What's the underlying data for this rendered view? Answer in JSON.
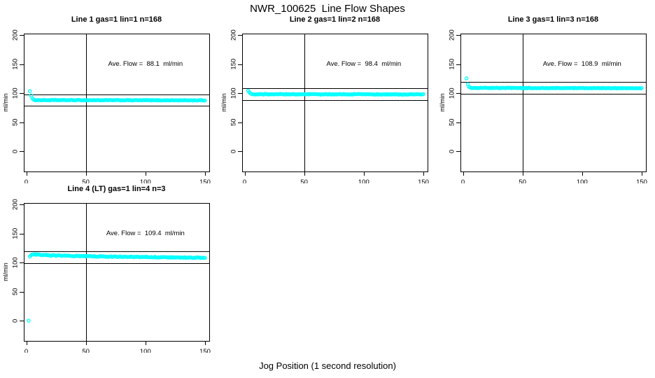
{
  "figure": {
    "title": "NWR_100625  Line Flow Shapes",
    "xlabel": "Jog Position (1 second resolution)",
    "background": "#FFFFFF",
    "colors": {
      "points": "#00FFFF",
      "axis": "#000000"
    }
  },
  "chart_data": [
    {
      "type": "scatter",
      "title": "Line 1 gas=1 lin=1 n=168",
      "n": 168,
      "ave_flow": 88.1,
      "ave_flow_label": "Ave. Flow =  88.1  ml/min",
      "ylabel": "ml/min",
      "x_ticks": [
        0,
        50,
        100,
        150
      ],
      "y_ticks": [
        0,
        50,
        100,
        150,
        200
      ],
      "xlim": [
        -2,
        153
      ],
      "ylim": [
        -34,
        202
      ],
      "vline_x": 50,
      "hlines": [
        98.1,
        78.1
      ],
      "annotation_xy": [
        100,
        150
      ],
      "marker": "open-circle",
      "x_step": 1,
      "noise": 0.5,
      "series_profile": [
        [
          3,
          104
        ],
        [
          4,
          96
        ],
        [
          5,
          91
        ],
        [
          6,
          89
        ],
        [
          8,
          88.2
        ],
        [
          150,
          87.8
        ]
      ],
      "grid": false
    },
    {
      "type": "scatter",
      "title": "Line 2 gas=1 lin=2 n=168",
      "n": 168,
      "ave_flow": 98.4,
      "ave_flow_label": "Ave. Flow =  98.4  ml/min",
      "ylabel": "ml/min",
      "x_ticks": [
        0,
        50,
        100,
        150
      ],
      "y_ticks": [
        0,
        50,
        100,
        150,
        200
      ],
      "xlim": [
        -2,
        153
      ],
      "ylim": [
        -34,
        202
      ],
      "vline_x": 50,
      "hlines": [
        108.4,
        88.4
      ],
      "annotation_xy": [
        100,
        150
      ],
      "marker": "open-circle",
      "x_step": 1,
      "noise": 0.6,
      "series_profile": [
        [
          3,
          105
        ],
        [
          4,
          101.5
        ],
        [
          5,
          99.3
        ],
        [
          7,
          98.4
        ],
        [
          150,
          98.0
        ]
      ],
      "grid": false
    },
    {
      "type": "scatter",
      "title": "Line 3 gas=1 lin=3 n=168",
      "n": 168,
      "ave_flow": 108.9,
      "ave_flow_label": "Ave. Flow =  108.9  ml/min",
      "ylabel": "ml/min",
      "x_ticks": [
        0,
        50,
        100,
        150
      ],
      "y_ticks": [
        0,
        50,
        100,
        150,
        200
      ],
      "xlim": [
        -2,
        153
      ],
      "ylim": [
        -34,
        202
      ],
      "vline_x": 50,
      "hlines": [
        118.9,
        98.9
      ],
      "annotation_xy": [
        100,
        150
      ],
      "marker": "open-circle",
      "x_step": 1,
      "noise": 0.5,
      "series_profile": [
        [
          3,
          126
        ],
        [
          4,
          116
        ],
        [
          5,
          111
        ],
        [
          7,
          109.2
        ],
        [
          150,
          108.6
        ]
      ],
      "grid": false
    },
    {
      "type": "scatter",
      "title": "Line 4 (LT) gas=1 lin=4 n=3",
      "n": 3,
      "ave_flow": 109.4,
      "ave_flow_label": "Ave. Flow =  109.4  ml/min",
      "ylabel": "ml/min",
      "x_ticks": [
        0,
        50,
        100,
        150
      ],
      "y_ticks": [
        0,
        50,
        100,
        150,
        200
      ],
      "xlim": [
        -2,
        153
      ],
      "ylim": [
        -34,
        202
      ],
      "vline_x": 50,
      "hlines": [
        119.4,
        99.4
      ],
      "annotation_xy": [
        100,
        150
      ],
      "marker": "open-circle",
      "x_step": 1,
      "noise": 0.7,
      "series_profile": [
        [
          2,
          0
        ],
        [
          3,
          110
        ],
        [
          4,
          113
        ],
        [
          6,
          114
        ],
        [
          25,
          112
        ],
        [
          70,
          110.3
        ],
        [
          150,
          108.4
        ]
      ],
      "grid": false
    }
  ]
}
